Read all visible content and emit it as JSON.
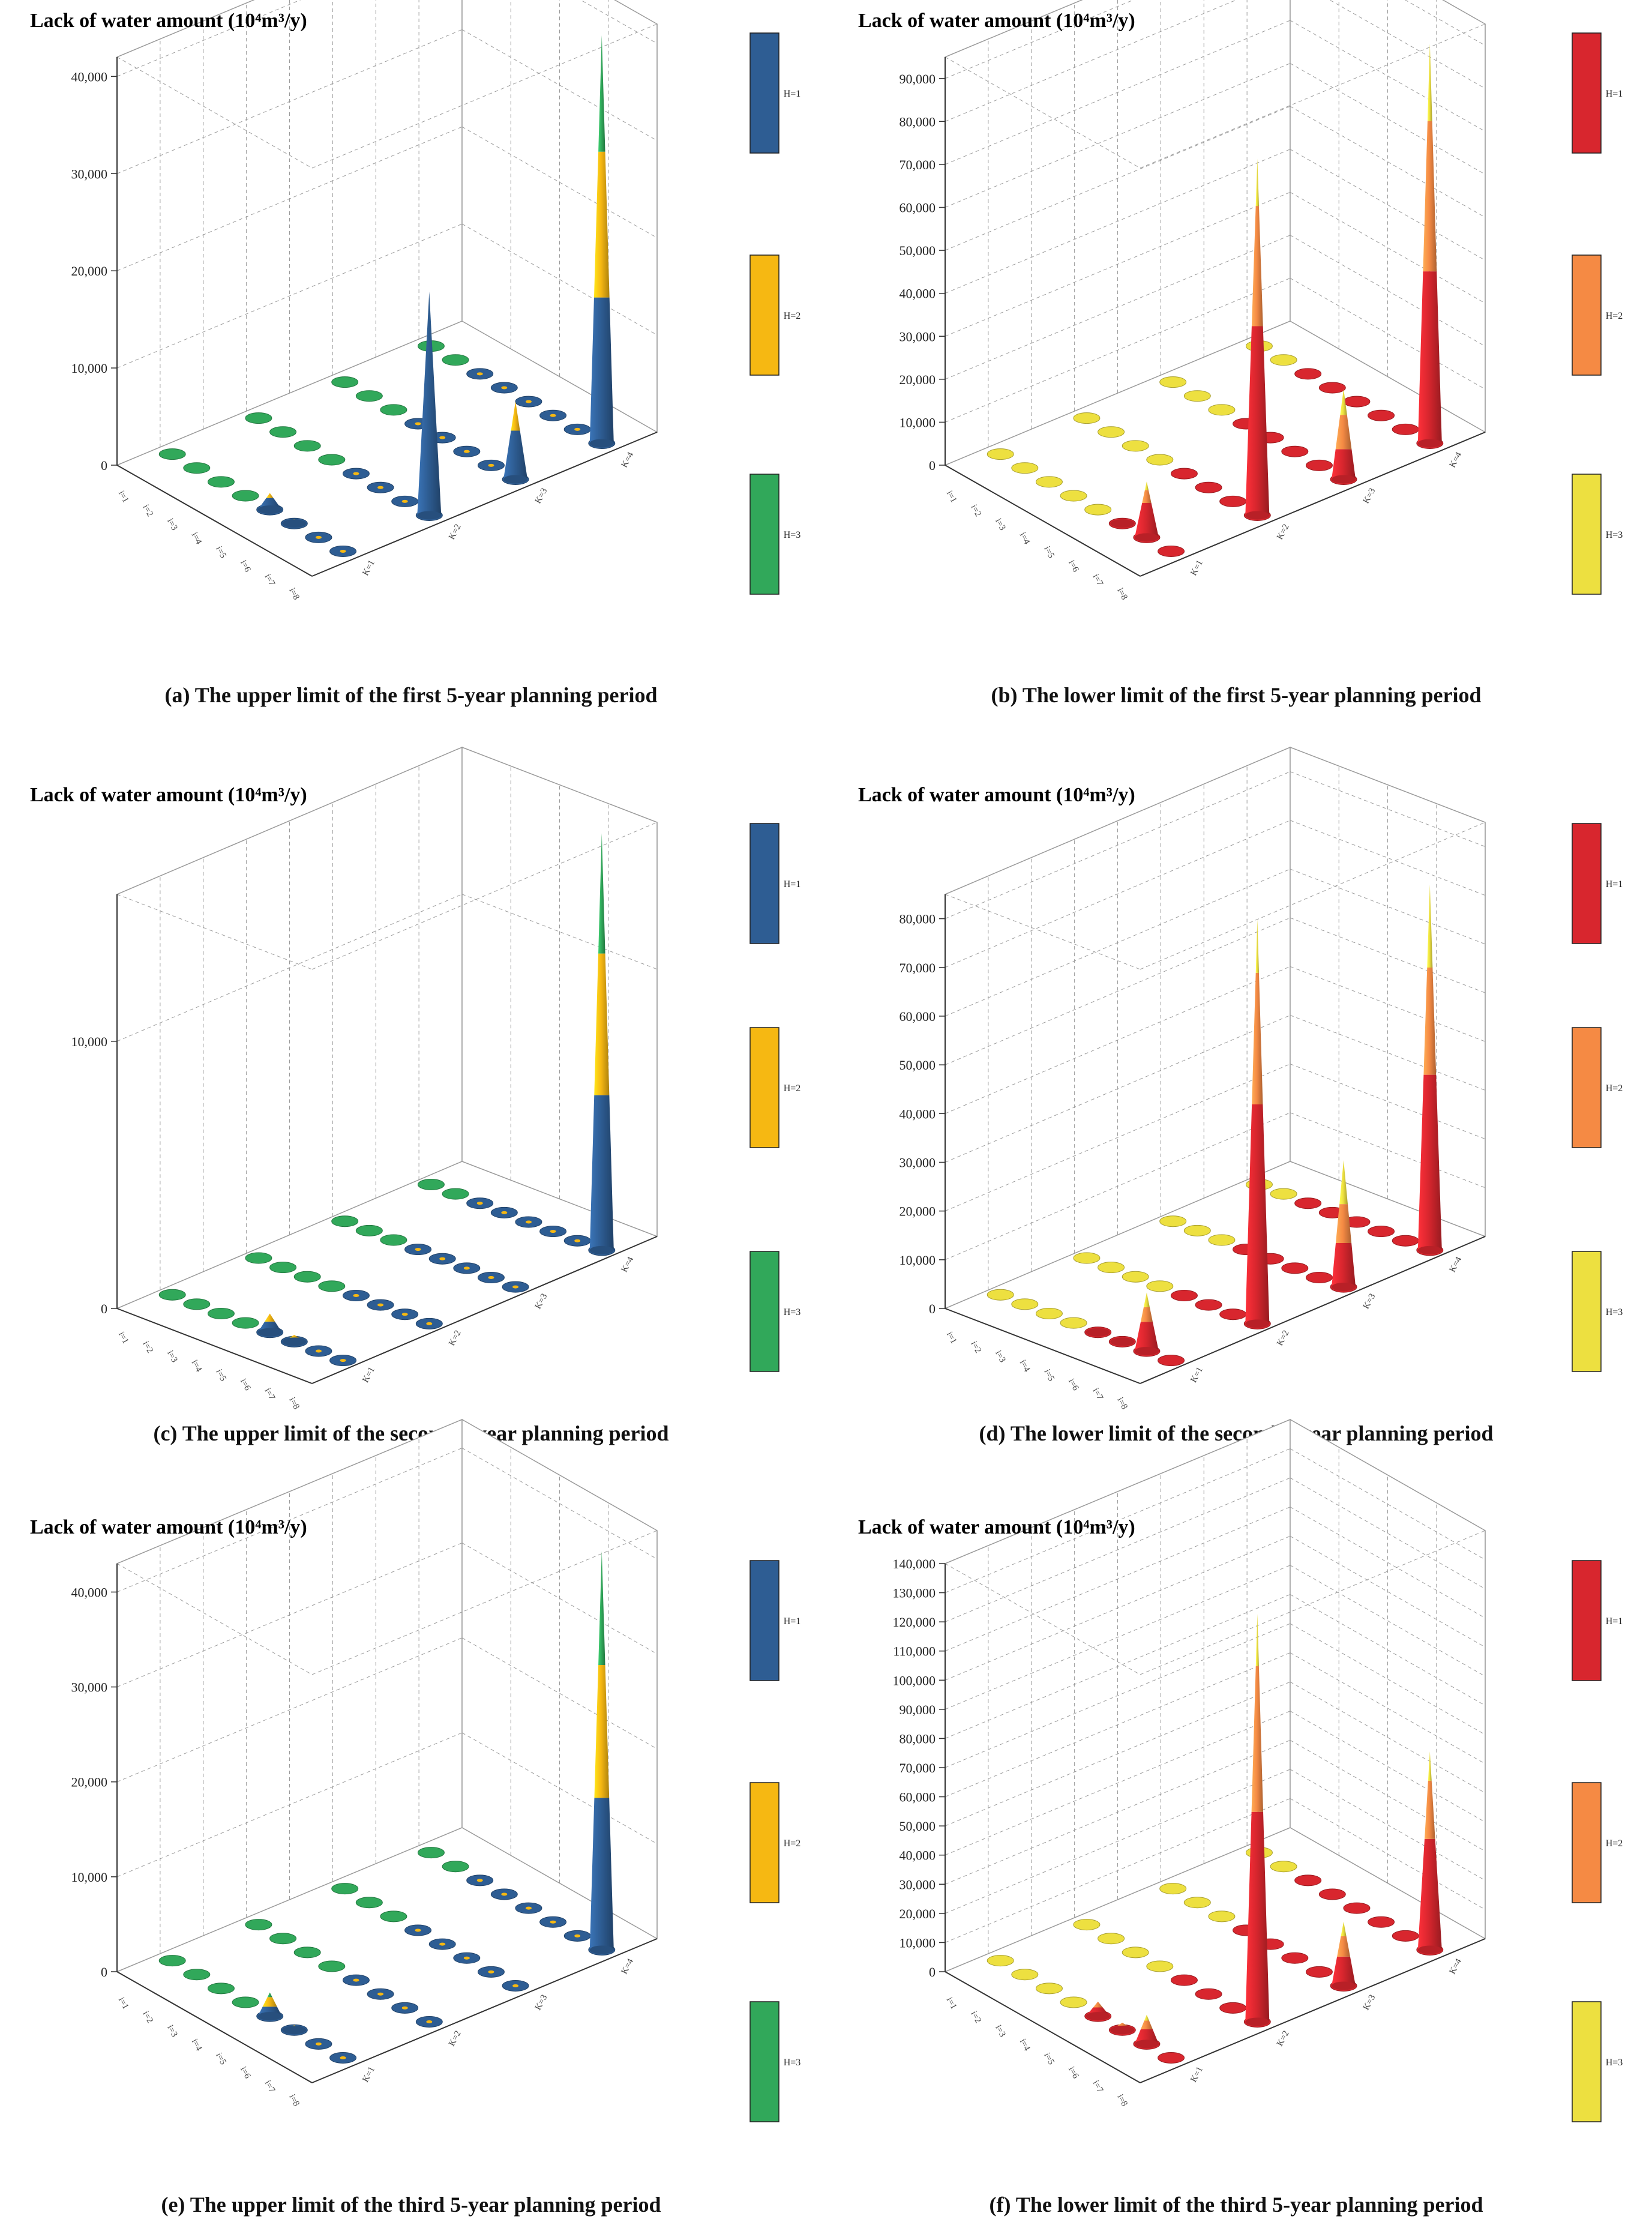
{
  "figure": {
    "colors": {
      "upper": [
        "#2e5d93",
        "#f6b812",
        "#31a85a"
      ],
      "lower": [
        "#d8262e",
        "#f58a44",
        "#ede040"
      ],
      "grid": "#9a9a9a",
      "axis": "#333333"
    }
  },
  "chart_data": [
    {
      "id": "a",
      "type": "bar3d-cone",
      "title": "Lack of water amount (10⁴m³/y)",
      "caption": "(a) The upper limit of the first 5-year planning period",
      "palette": "upper",
      "legend": [
        "H=1",
        "H=2",
        "H=3"
      ],
      "ylim": [
        0,
        42000
      ],
      "yticks": [
        0,
        10000,
        20000,
        30000,
        40000
      ],
      "ytick_labels": [
        "0",
        "10,000",
        "20,000",
        "30,000",
        "40,000"
      ],
      "i_labels": [
        "i=1",
        "i=2",
        "i=3",
        "i=4",
        "i=5",
        "i=6",
        "i=7",
        "i=8"
      ],
      "k_labels": [
        "K=1",
        "K=2",
        "K=3",
        "K=4"
      ],
      "bars": [
        {
          "i": 5,
          "k": 1,
          "series": [
            1200,
            500,
            0
          ]
        },
        {
          "i": 6,
          "k": 1,
          "series": [
            300,
            150,
            0
          ]
        },
        {
          "i": 8,
          "k": 4,
          "series": [
            15000,
            15000,
            12000
          ]
        },
        {
          "i": 8,
          "k": 3,
          "series": [
            5000,
            3000,
            0
          ]
        },
        {
          "i": 8,
          "k": 2,
          "series": [
            23000,
            0,
            0
          ]
        }
      ]
    },
    {
      "id": "b",
      "type": "bar3d-cone",
      "title": "Lack of water amount (10⁴m³/y)",
      "caption": "(b) The lower limit of the first 5-year planning period",
      "palette": "lower",
      "legend": [
        "H=1",
        "H=2",
        "H=3"
      ],
      "ylim": [
        0,
        95000
      ],
      "yticks": [
        0,
        10000,
        20000,
        30000,
        40000,
        50000,
        60000,
        70000,
        80000,
        90000
      ],
      "ytick_labels": [
        "0",
        "10,000",
        "20,000",
        "30,000",
        "40,000",
        "50,000",
        "60,000",
        "70,000",
        "80,000",
        "90,000"
      ],
      "i_labels": [
        "i=1",
        "i=2",
        "i=3",
        "i=4",
        "i=5",
        "i=6",
        "i=7",
        "i=8"
      ],
      "k_labels": [
        "K=1",
        "K=2",
        "K=3",
        "K=4"
      ],
      "bars": [
        {
          "i": 6,
          "k": 1,
          "series": [
            600,
            300,
            0
          ]
        },
        {
          "i": 7,
          "k": 1,
          "series": [
            8000,
            3000,
            2000
          ]
        },
        {
          "i": 8,
          "k": 4,
          "series": [
            40000,
            35000,
            18000
          ]
        },
        {
          "i": 8,
          "k": 3,
          "series": [
            7000,
            8000,
            6000
          ]
        },
        {
          "i": 8,
          "k": 2,
          "series": [
            44000,
            28000,
            11000
          ]
        }
      ]
    },
    {
      "id": "c",
      "type": "bar3d-cone",
      "title": "Lack of water amount (10⁴m³/y)",
      "caption": "(c) The upper limit of the second 5-year planning period",
      "palette": "upper",
      "legend": [
        "H=1",
        "H=2",
        "H=3"
      ],
      "ylim": [
        0,
        15500
      ],
      "yticks": [
        0,
        10000
      ],
      "ytick_labels": [
        "0",
        "10,000"
      ],
      "i_labels": [
        "i=1",
        "i=2",
        "i=3",
        "i=4",
        "i=5",
        "i=6",
        "i=7",
        "i=8"
      ],
      "k_labels": [
        "K=1",
        "K=2",
        "K=3",
        "K=4"
      ],
      "bars": [
        {
          "i": 5,
          "k": 1,
          "series": [
            400,
            300,
            0
          ]
        },
        {
          "i": 6,
          "k": 1,
          "series": [
            150,
            100,
            0
          ]
        },
        {
          "i": 8,
          "k": 4,
          "series": [
            5800,
            5300,
            4500
          ]
        }
      ]
    },
    {
      "id": "d",
      "type": "bar3d-cone",
      "title": "Lack of water amount (10⁴m³/y)",
      "caption": "(d) The lower limit of the second 5-year planning period",
      "palette": "lower",
      "legend": [
        "H=1",
        "H=2",
        "H=3"
      ],
      "ylim": [
        0,
        85000
      ],
      "yticks": [
        0,
        10000,
        20000,
        30000,
        40000,
        50000,
        60000,
        70000,
        80000
      ],
      "ytick_labels": [
        "0",
        "10,000",
        "20,000",
        "30,000",
        "40,000",
        "50,000",
        "60,000",
        "70,000",
        "80,000"
      ],
      "i_labels": [
        "i=1",
        "i=2",
        "i=3",
        "i=4",
        "i=5",
        "i=6",
        "i=7",
        "i=8"
      ],
      "k_labels": [
        "K=1",
        "K=2",
        "K=3",
        "K=4"
      ],
      "bars": [
        {
          "i": 5,
          "k": 1,
          "series": [
            500,
            300,
            0
          ]
        },
        {
          "i": 6,
          "k": 1,
          "series": [
            300,
            150,
            0
          ]
        },
        {
          "i": 7,
          "k": 1,
          "series": [
            6000,
            3000,
            3000
          ]
        },
        {
          "i": 8,
          "k": 4,
          "series": [
            36000,
            22000,
            17000
          ]
        },
        {
          "i": 8,
          "k": 3,
          "series": [
            9000,
            8000,
            9000
          ]
        },
        {
          "i": 8,
          "k": 2,
          "series": [
            45000,
            27000,
            11000
          ]
        }
      ]
    },
    {
      "id": "e",
      "type": "bar3d-cone",
      "title": "Lack of water amount (10⁴m³/y)",
      "caption": "(e) The upper limit of the third 5-year planning period",
      "palette": "upper",
      "legend": [
        "H=1",
        "H=2",
        "H=3"
      ],
      "ylim": [
        0,
        43000
      ],
      "yticks": [
        0,
        10000,
        20000,
        30000,
        40000
      ],
      "ytick_labels": [
        "0",
        "10,000",
        "20,000",
        "30,000",
        "40,000"
      ],
      "i_labels": [
        "i=1",
        "i=2",
        "i=3",
        "i=4",
        "i=5",
        "i=6",
        "i=7",
        "i=8"
      ],
      "k_labels": [
        "K=1",
        "K=2",
        "K=3",
        "K=4"
      ],
      "bars": [
        {
          "i": 5,
          "k": 1,
          "series": [
            1000,
            1000,
            500
          ]
        },
        {
          "i": 6,
          "k": 1,
          "series": [
            300,
            200,
            0
          ]
        },
        {
          "i": 8,
          "k": 4,
          "series": [
            16000,
            14000,
            12000
          ]
        }
      ]
    },
    {
      "id": "f",
      "type": "bar3d-cone",
      "title": "Lack of water amount (10⁴m³/y)",
      "caption": "(f) The lower limit of the third 5-year planning period",
      "palette": "lower",
      "legend": [
        "H=1",
        "H=2",
        "H=3"
      ],
      "ylim": [
        0,
        140000
      ],
      "yticks": [
        0,
        10000,
        20000,
        30000,
        40000,
        50000,
        60000,
        70000,
        80000,
        90000,
        100000,
        110000,
        120000,
        130000,
        140000
      ],
      "ytick_labels": [
        "0",
        "10,000",
        "20,000",
        "30,000",
        "40,000",
        "50,000",
        "60,000",
        "70,000",
        "80,000",
        "90,000",
        "100,000",
        "110,000",
        "120,000",
        "130,000",
        "140,000"
      ],
      "i_labels": [
        "i=1",
        "i=2",
        "i=3",
        "i=4",
        "i=5",
        "i=6",
        "i=7",
        "i=8"
      ],
      "k_labels": [
        "K=1",
        "K=2",
        "K=3",
        "K=4"
      ],
      "bars": [
        {
          "i": 5,
          "k": 1,
          "series": [
            3000,
            2000,
            0
          ]
        },
        {
          "i": 6,
          "k": 1,
          "series": [
            1500,
            1000,
            0
          ]
        },
        {
          "i": 7,
          "k": 1,
          "series": [
            5000,
            3000,
            2000
          ]
        },
        {
          "i": 8,
          "k": 4,
          "series": [
            38000,
            20000,
            10000
          ]
        },
        {
          "i": 8,
          "k": 3,
          "series": [
            10000,
            7000,
            5000
          ]
        },
        {
          "i": 8,
          "k": 2,
          "series": [
            72000,
            50000,
            18000
          ]
        }
      ]
    }
  ]
}
